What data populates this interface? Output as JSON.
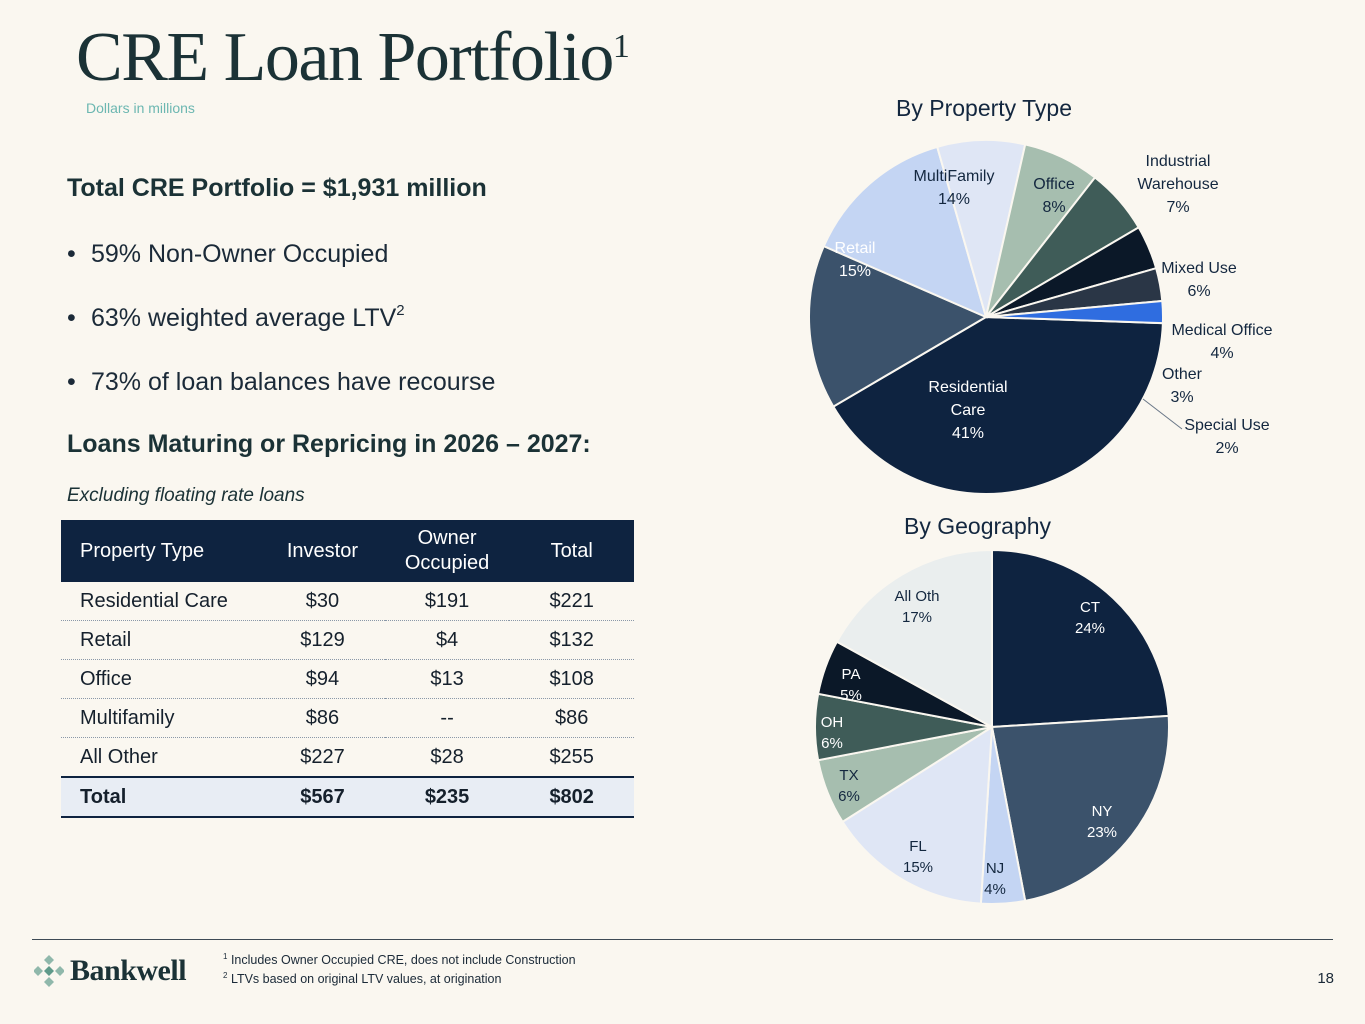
{
  "header": {
    "title": "CRE Loan Portfolio",
    "title_sup": "1",
    "subtitle": "Dollars in millions"
  },
  "summary": {
    "headline": "Total CRE Portfolio = $1,931 million",
    "bullets": [
      {
        "text": "59% Non-Owner Occupied",
        "sup": ""
      },
      {
        "text": "63% weighted average LTV",
        "sup": "2"
      },
      {
        "text": "73% of loan balances have recourse",
        "sup": ""
      }
    ]
  },
  "maturing": {
    "heading": "Loans Maturing or Repricing in 2026 – 2027:",
    "note": "Excluding floating rate loans",
    "table": {
      "headers": [
        "Property Type",
        "Investor",
        "Owner Occupied",
        "Total"
      ],
      "rows": [
        [
          "Residential Care",
          "$30",
          "$191",
          "$221"
        ],
        [
          "Retail",
          "$129",
          "$4",
          "$132"
        ],
        [
          "Office",
          "$94",
          "$13",
          "$108"
        ],
        [
          "Multifamily",
          "$86",
          "--",
          "$86"
        ],
        [
          "All Other",
          "$227",
          "$28",
          "$255"
        ]
      ],
      "total_row": [
        "Total",
        "$567",
        "$235",
        "$802"
      ]
    }
  },
  "chart_data": [
    {
      "type": "pie",
      "title": "By Property Type",
      "slices": [
        {
          "label": "Residential Care",
          "display": [
            "Residential",
            "Care",
            "41%"
          ],
          "value": 41,
          "color": "#0e2340",
          "text_color": "#ffffff"
        },
        {
          "label": "Retail",
          "display": [
            "Retail",
            "15%"
          ],
          "value": 15,
          "color": "#3b526b",
          "text_color": "#ffffff"
        },
        {
          "label": "MultiFamily",
          "display": [
            "MultiFamily",
            "14%"
          ],
          "value": 14,
          "color": "#c4d5f3",
          "text_color": "#13273f"
        },
        {
          "label": "Office",
          "display": [
            "Office",
            "8%"
          ],
          "value": 8,
          "color": "#dfe6f5",
          "text_color": "#13273f"
        },
        {
          "label": "Industrial Warehouse",
          "display": [
            "Industrial",
            "Warehouse",
            "7%"
          ],
          "value": 7,
          "color": "#a6beaf",
          "text_color": "#13273f"
        },
        {
          "label": "Mixed Use",
          "display": [
            "Mixed Use",
            "6%"
          ],
          "value": 6,
          "color": "#3f5c58",
          "text_color": "#13273f"
        },
        {
          "label": "Medical Office",
          "display": [
            "Medical Office",
            "4%"
          ],
          "value": 4,
          "color": "#0b1828",
          "text_color": "#13273f"
        },
        {
          "label": "Other",
          "display": [
            "Other",
            "3%"
          ],
          "value": 3,
          "color": "#2a3646",
          "text_color": "#13273f"
        },
        {
          "label": "Special Use",
          "display": [
            "Special Use",
            "2%"
          ],
          "value": 2,
          "color": "#2f6de0",
          "text_color": "#13273f"
        }
      ]
    },
    {
      "type": "pie",
      "title": "By Geography",
      "slices": [
        {
          "label": "CT",
          "display": [
            "CT",
            "24%"
          ],
          "value": 24,
          "color": "#0e2340",
          "text_color": "#ffffff"
        },
        {
          "label": "NY",
          "display": [
            "NY",
            "23%"
          ],
          "value": 23,
          "color": "#3b526b",
          "text_color": "#ffffff"
        },
        {
          "label": "NJ",
          "display": [
            "NJ",
            "4%"
          ],
          "value": 4,
          "color": "#c4d5f3",
          "text_color": "#13273f"
        },
        {
          "label": "FL",
          "display": [
            "FL",
            "15%"
          ],
          "value": 15,
          "color": "#dfe6f5",
          "text_color": "#13273f"
        },
        {
          "label": "TX",
          "display": [
            "TX",
            "6%"
          ],
          "value": 6,
          "color": "#a6beaf",
          "text_color": "#13273f"
        },
        {
          "label": "OH",
          "display": [
            "OH",
            "6%"
          ],
          "value": 6,
          "color": "#3f5c58",
          "text_color": "#ffffff"
        },
        {
          "label": "PA",
          "display": [
            "PA",
            "5%"
          ],
          "value": 5,
          "color": "#0b1828",
          "text_color": "#ffffff"
        },
        {
          "label": "All Oth",
          "display": [
            "All Oth",
            "17%"
          ],
          "value": 17,
          "color": "#eaeeee",
          "text_color": "#13273f"
        }
      ]
    }
  ],
  "footer": {
    "logo": "Bankwell",
    "footnotes": [
      {
        "sup": "1",
        "text": "Includes Owner Occupied CRE, does not include Construction"
      },
      {
        "sup": "2",
        "text": "LTVs based on original LTV values, at origination"
      }
    ],
    "page_number": "18"
  }
}
